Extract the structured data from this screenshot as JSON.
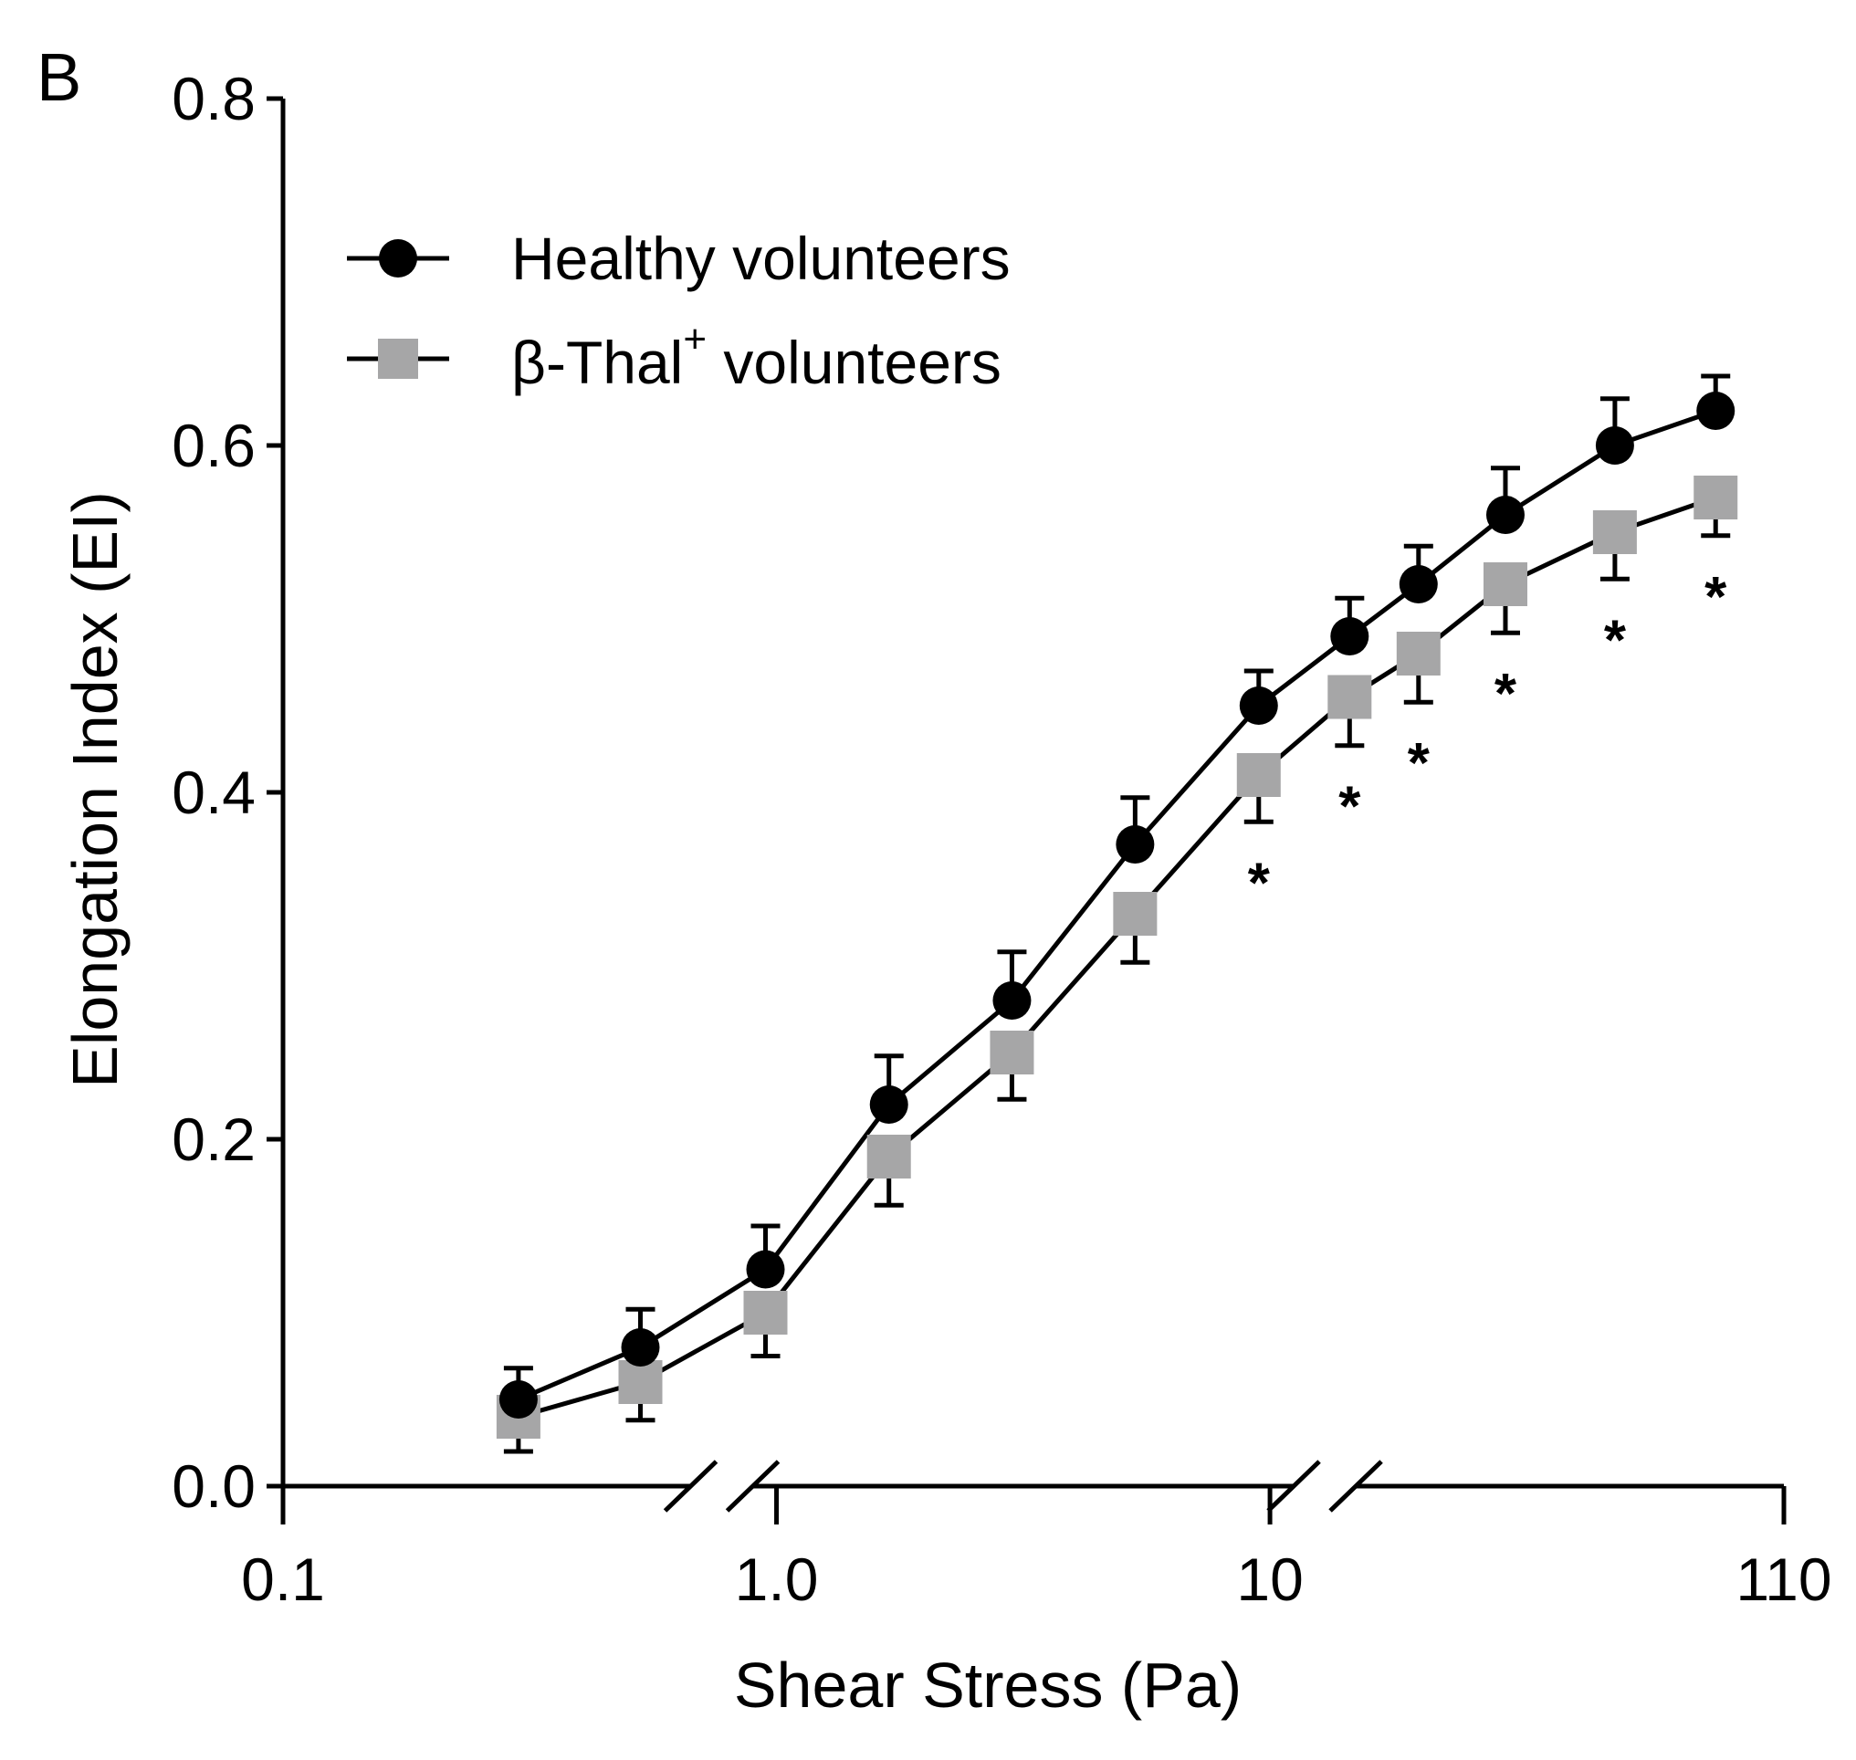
{
  "chart_data": {
    "type": "line",
    "panel_label": "B",
    "xlabel": "Shear Stress (Pa)",
    "ylabel": "Elongation Index (EI)",
    "xscale": "log",
    "axis_breaks": true,
    "xlim": [
      0.1,
      110
    ],
    "ylim": [
      0.0,
      0.8
    ],
    "xticks": [
      {
        "value": 0.1,
        "label": "0.1"
      },
      {
        "value": 1.0,
        "label": "1.0"
      },
      {
        "value": 10,
        "label": "10"
      },
      {
        "value": 110,
        "label": "110"
      }
    ],
    "yticks": [
      {
        "value": 0.0,
        "label": "0.0"
      },
      {
        "value": 0.2,
        "label": "0.2"
      },
      {
        "value": 0.4,
        "label": "0.4"
      },
      {
        "value": 0.6,
        "label": "0.6"
      },
      {
        "value": 0.8,
        "label": "0.8"
      }
    ],
    "x": [
      0.3,
      0.53,
      0.95,
      1.69,
      3.0,
      5.33,
      9.49,
      14.5,
      20.0,
      30.0,
      50.0,
      80.0
    ],
    "series": [
      {
        "name": "Healthy volunteers",
        "marker": "circle",
        "color": "#000000",
        "values": [
          0.05,
          0.08,
          0.125,
          0.22,
          0.28,
          0.37,
          0.45,
          0.49,
          0.52,
          0.56,
          0.6,
          0.62
        ],
        "errors": [
          0.018,
          0.022,
          0.025,
          0.028,
          0.028,
          0.027,
          0.02,
          0.022,
          0.022,
          0.027,
          0.027,
          0.02
        ]
      },
      {
        "name": "β-Thal+ volunteers",
        "name_base": "β-Thal",
        "name_superscript": "+",
        "marker": "square",
        "color": "#a6a6a7",
        "values": [
          0.04,
          0.06,
          0.1,
          0.19,
          0.25,
          0.33,
          0.41,
          0.455,
          0.48,
          0.52,
          0.55,
          0.57
        ],
        "errors": [
          0.02,
          0.022,
          0.025,
          0.028,
          0.027,
          0.028,
          0.027,
          0.028,
          0.028,
          0.028,
          0.027,
          0.022
        ]
      }
    ],
    "significance": {
      "symbol": "*",
      "x": [
        9.49,
        14.5,
        20.0,
        30.0,
        50.0,
        80.0
      ]
    },
    "legend_position": "top-left",
    "grid": false
  }
}
